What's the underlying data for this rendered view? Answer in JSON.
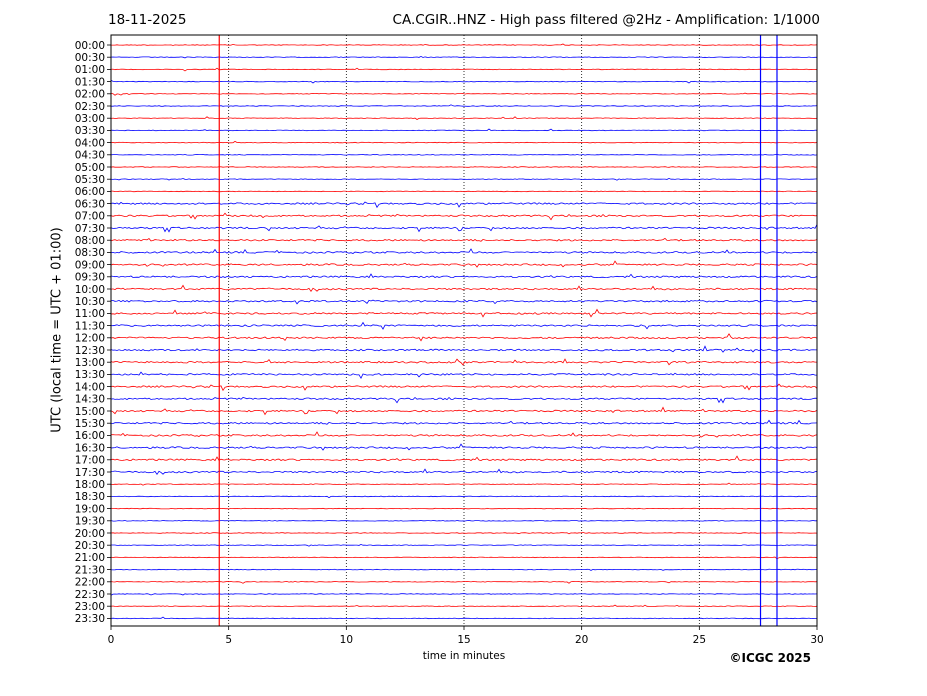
{
  "chart_data": {
    "type": "line",
    "date": "18-11-2025",
    "title": "CA.CGIR..HNZ - High pass filtered @2Hz - Amplification: 1/1000",
    "ylabel": "UTC (local time = UTC + 01:00)",
    "xlabel": "time in minutes",
    "xlim": [
      0,
      30
    ],
    "xticks": [
      0,
      5,
      10,
      15,
      20,
      25,
      30
    ],
    "yticks": [
      "00:00",
      "00:30",
      "01:00",
      "01:30",
      "02:00",
      "02:30",
      "03:00",
      "03:30",
      "04:00",
      "04:30",
      "05:00",
      "05:30",
      "06:00",
      "06:30",
      "07:00",
      "07:30",
      "08:00",
      "08:30",
      "09:00",
      "09:30",
      "10:00",
      "10:30",
      "11:00",
      "11:30",
      "12:00",
      "12:30",
      "13:00",
      "13:30",
      "14:00",
      "14:30",
      "15:00",
      "15:30",
      "16:00",
      "16:30",
      "17:00",
      "17:30",
      "18:00",
      "18:30",
      "19:00",
      "19:30",
      "20:00",
      "20:30",
      "21:00",
      "21:30",
      "22:00",
      "22:30",
      "23:00",
      "23:30"
    ],
    "trace_colors": [
      "#ff0000",
      "#0000ff"
    ],
    "grid": "vertical dotted at 5-minute intervals",
    "vertical_lines_minutes": [
      4.6,
      27.6,
      28.3
    ]
  },
  "copyright": "©ICGC 2025"
}
